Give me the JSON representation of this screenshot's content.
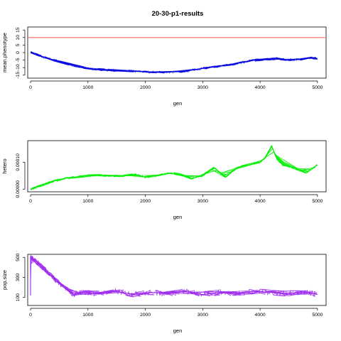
{
  "chart_data": [
    {
      "type": "line",
      "title": "20-30-p1-results",
      "xlabel": "gen",
      "ylabel": "mean.phenotype",
      "xlim": [
        -50,
        5150
      ],
      "ylim": [
        -17,
        17
      ],
      "xticks": [
        0,
        1000,
        2000,
        3000,
        4000,
        5000
      ],
      "xtick_labels": [
        "0",
        "1000",
        "2000",
        "3000",
        "4000",
        "5000"
      ],
      "yticks": [
        15,
        10,
        5,
        0,
        -5,
        -10,
        -15
      ],
      "ytick_labels": [
        "15",
        "10",
        "5",
        "0",
        "-5",
        "-10",
        "-15"
      ],
      "grid": false,
      "legend": "none",
      "reference_line": {
        "y": 10,
        "color": "#ff5555"
      },
      "series": [
        {
          "color": "#0000dd",
          "x": [
            0,
            150,
            300,
            500,
            700,
            900,
            1100,
            1300,
            1500,
            1800,
            2100,
            2400,
            2700,
            2900,
            3100,
            3300,
            3500,
            3700,
            3900,
            4100,
            4300,
            4500,
            4700,
            4900,
            5000
          ],
          "y": [
            0.5,
            -2,
            -4,
            -6,
            -8,
            -10,
            -11,
            -11.5,
            -12,
            -12.5,
            -13,
            -13,
            -12.5,
            -11,
            -10,
            -9,
            -8,
            -6.5,
            -5,
            -4.5,
            -4,
            -5,
            -4.5,
            -3.5,
            -4
          ]
        }
      ]
    },
    {
      "type": "line",
      "title": "",
      "xlabel": "gen",
      "ylabel": "hetero",
      "xlim": [
        -50,
        5150
      ],
      "ylim": [
        -1e-05,
        0.00018
      ],
      "xticks": [
        0,
        1000,
        2000,
        3000,
        4000,
        5000
      ],
      "xtick_labels": [
        "0",
        "1000",
        "2000",
        "3000",
        "4000",
        "5000"
      ],
      "yticks": [
        0,
        0.0001
      ],
      "ytick_labels": [
        "0.00000",
        "0.00010"
      ],
      "grid": false,
      "legend": "none",
      "series": [
        {
          "color": "#00ee00",
          "x": [
            0,
            200,
            400,
            600,
            800,
            1000,
            1200,
            1400,
            1600,
            1800,
            2000,
            2200,
            2400,
            2600,
            2800,
            3000,
            3200,
            3400,
            3600,
            3800,
            4000,
            4100,
            4200,
            4300,
            4400,
            4600,
            4800,
            5000
          ],
          "y": [
            0,
            1.5e-05,
            3e-05,
            4e-05,
            4.5e-05,
            5e-05,
            5.2e-05,
            4.8e-05,
            5e-05,
            5.5e-05,
            4.5e-05,
            5e-05,
            6e-05,
            5.5e-05,
            4e-05,
            5e-05,
            8e-05,
            4.5e-05,
            8e-05,
            9e-05,
            0.0001,
            0.00012,
            0.00016,
            0.00011,
            9e-05,
            8e-05,
            6e-05,
            9e-05
          ]
        }
      ]
    },
    {
      "type": "line",
      "title": "",
      "xlabel": "gen",
      "ylabel": "pop.size",
      "xlim": [
        -50,
        5150
      ],
      "ylim": [
        20,
        530
      ],
      "xticks": [
        0,
        1000,
        2000,
        3000,
        4000,
        5000
      ],
      "xtick_labels": [
        "0",
        "1000",
        "2000",
        "3000",
        "4000",
        "5000"
      ],
      "yticks": [
        100,
        300,
        500
      ],
      "ytick_labels": [
        "100",
        "300",
        "500"
      ],
      "grid": false,
      "legend": "none",
      "series": [
        {
          "color": "#9922ee",
          "x": [
            0,
            0,
            50,
            150,
            300,
            450,
            600,
            750,
            900,
            1200,
            1500,
            1800,
            2100,
            2400,
            2700,
            3000,
            3300,
            3600,
            3900,
            4200,
            4500,
            4800,
            5000
          ],
          "y": [
            120,
            500,
            480,
            430,
            350,
            270,
            200,
            130,
            150,
            140,
            160,
            130,
            150,
            140,
            160,
            130,
            150,
            140,
            160,
            150,
            140,
            150,
            130
          ]
        }
      ]
    }
  ]
}
